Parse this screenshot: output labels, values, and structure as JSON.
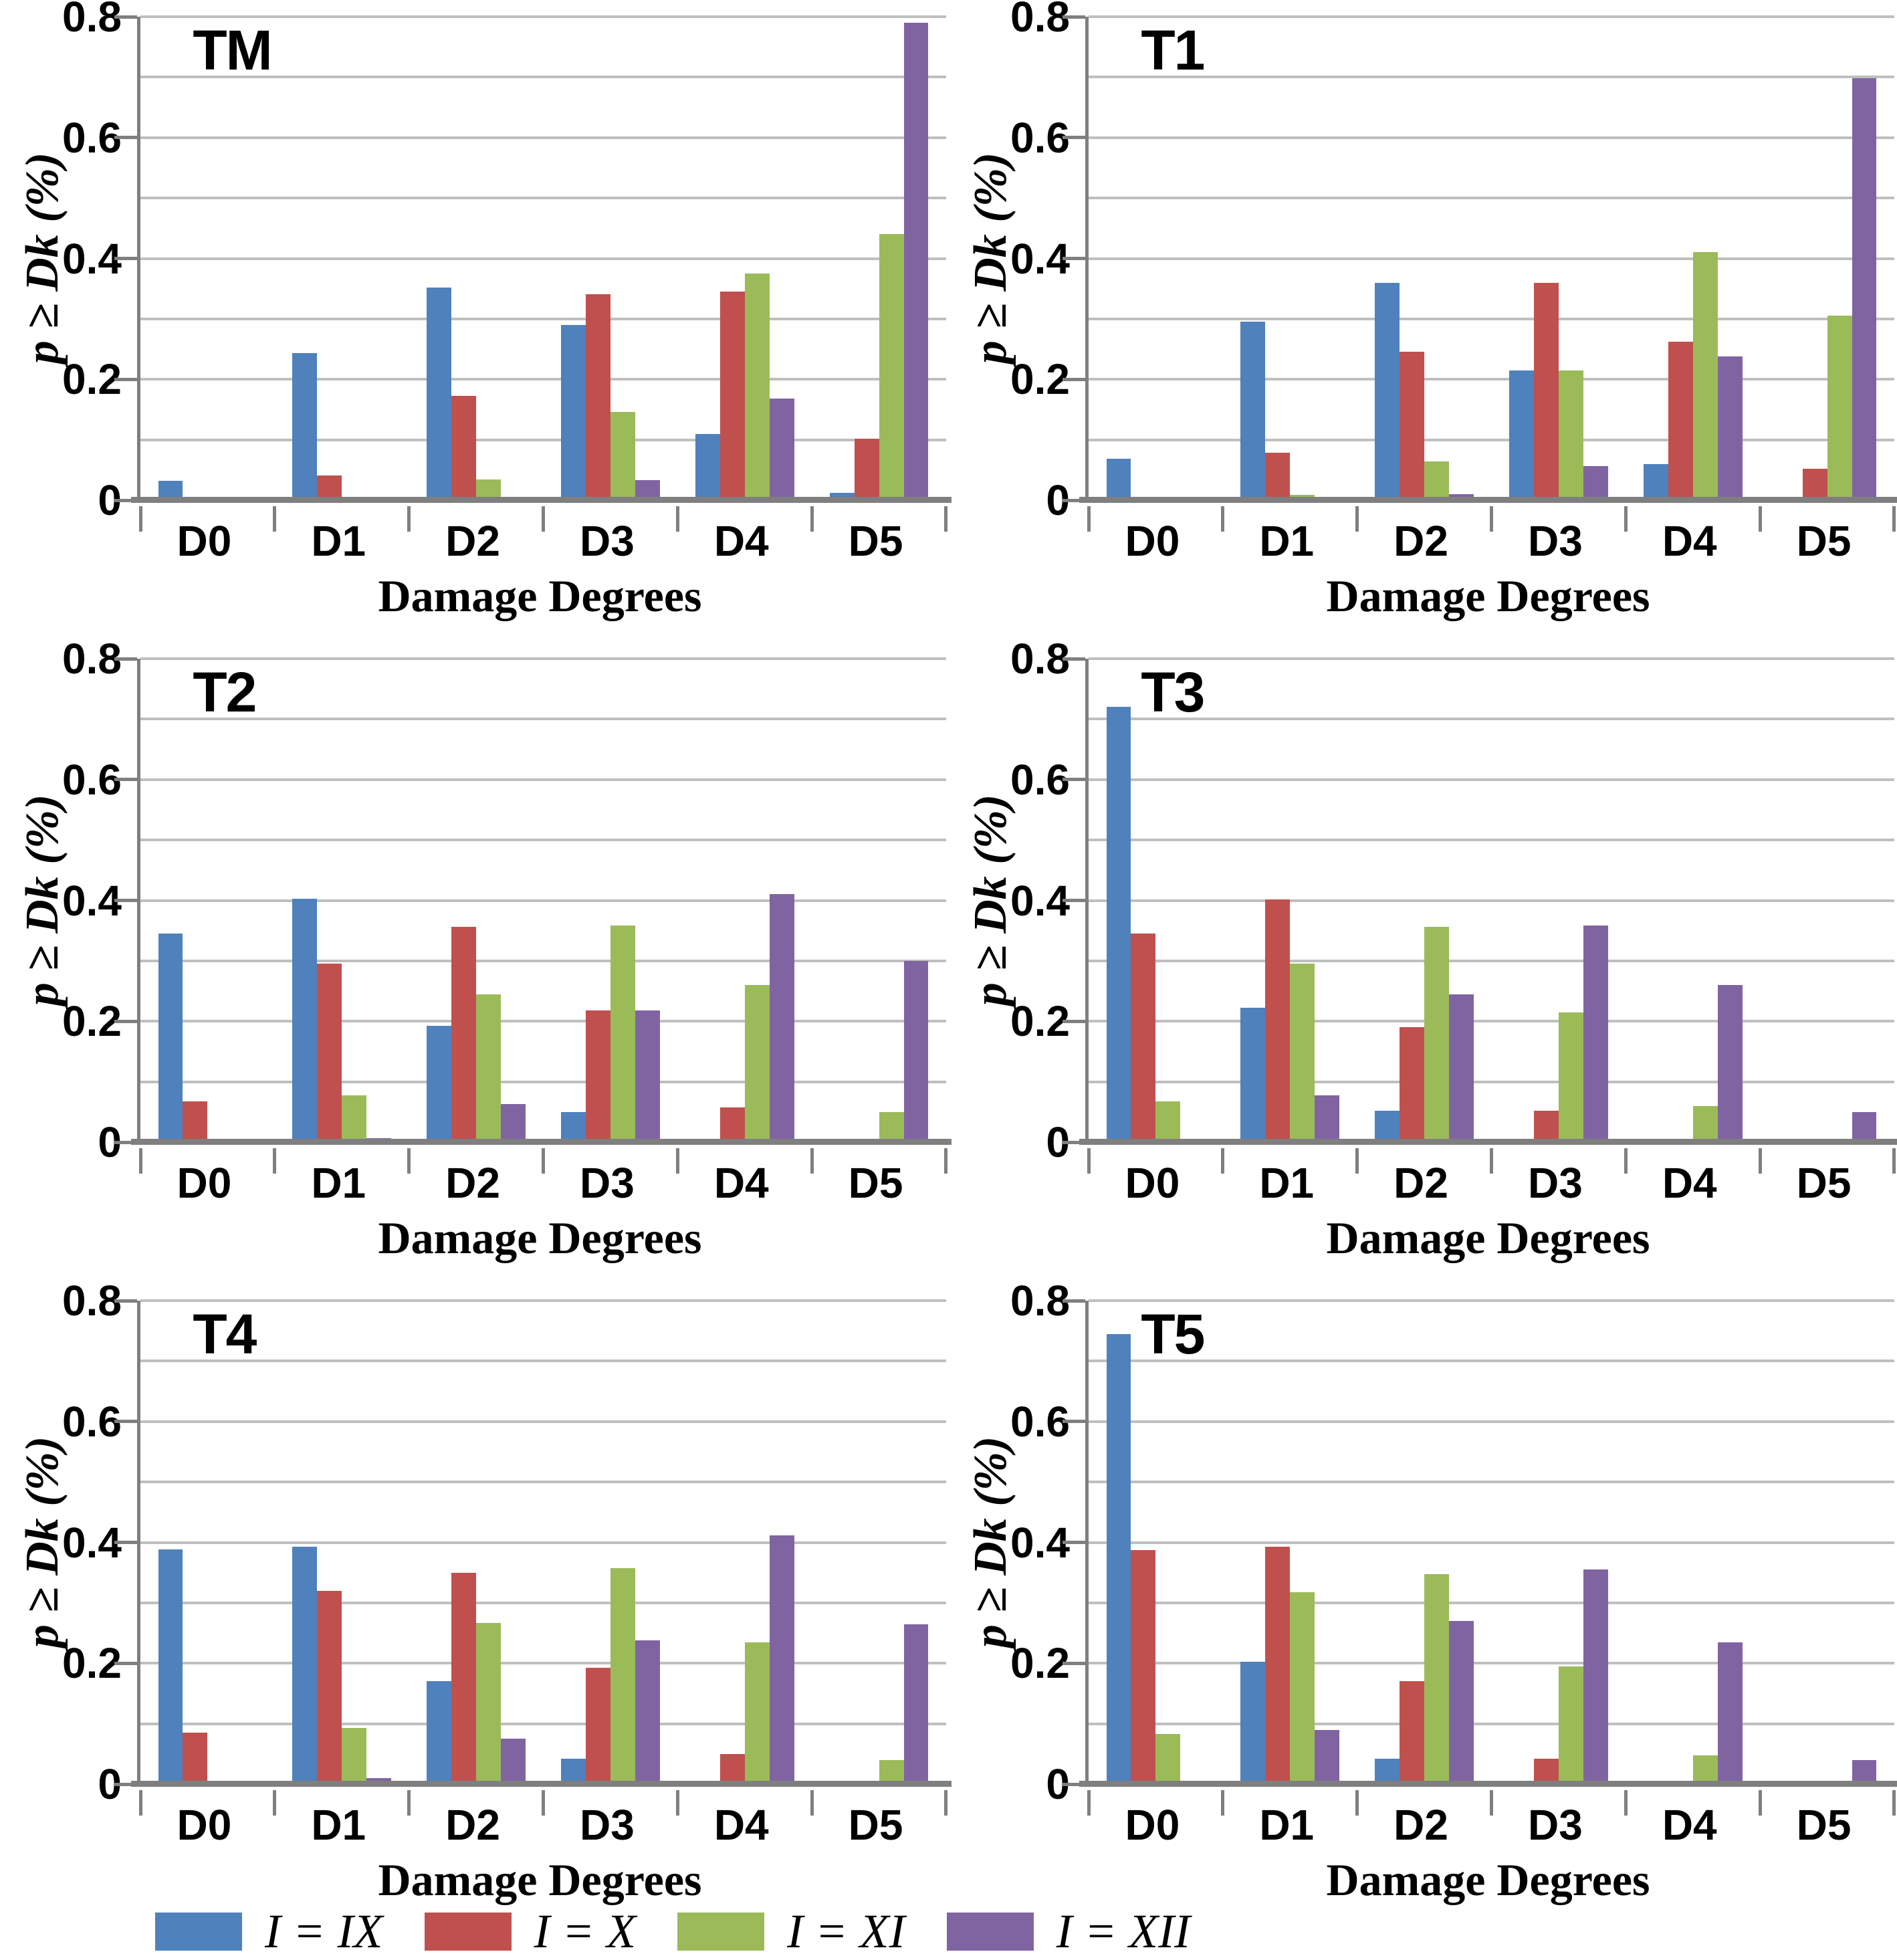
{
  "chart_data": {
    "type": "bar",
    "categories": [
      "D0",
      "D1",
      "D2",
      "D3",
      "D4",
      "D5"
    ],
    "xlabel": "Damage Degrees",
    "ylabel": "p ≥ Dk (%)",
    "ylim": [
      0,
      0.8
    ],
    "yticks": [
      0,
      0.2,
      0.4,
      0.6,
      0.8
    ],
    "ytick_labels": [
      "0",
      "0.2",
      "0.4",
      "0.6",
      "0.8"
    ],
    "gridline_step": 0.1,
    "grid": true,
    "legend_position": "bottom",
    "charts": [
      {
        "title": "TM",
        "series": [
          {
            "name": "I = IX",
            "values": [
              0.032,
              0.243,
              0.352,
              0.29,
              0.11,
              0.012
            ]
          },
          {
            "name": "I = X",
            "values": [
              0.002,
              0.041,
              0.173,
              0.341,
              0.345,
              0.102
            ]
          },
          {
            "name": "I = XI",
            "values": [
              0.001,
              0.005,
              0.034,
              0.146,
              0.375,
              0.44
            ]
          },
          {
            "name": "I = XII",
            "values": [
              0.0,
              0.001,
              0.004,
              0.033,
              0.168,
              0.79
            ]
          }
        ]
      },
      {
        "title": "T1",
        "series": [
          {
            "name": "I = IX",
            "values": [
              0.069,
              0.295,
              0.36,
              0.215,
              0.06,
              0.003
            ]
          },
          {
            "name": "I = X",
            "values": [
              0.006,
              0.079,
              0.246,
              0.36,
              0.262,
              0.052
            ]
          },
          {
            "name": "I = XI",
            "values": [
              0.001,
              0.009,
              0.064,
              0.215,
              0.41,
              0.305
            ]
          },
          {
            "name": "I = XII",
            "values": [
              0.0,
              0.001,
              0.01,
              0.057,
              0.238,
              0.698
            ]
          }
        ]
      },
      {
        "title": "T2",
        "series": [
          {
            "name": "I = IX",
            "values": [
              0.345,
              0.403,
              0.192,
              0.05,
              0.005,
              0.001
            ]
          },
          {
            "name": "I = X",
            "values": [
              0.068,
              0.295,
              0.356,
              0.218,
              0.058,
              0.001
            ]
          },
          {
            "name": "I = XI",
            "values": [
              0.004,
              0.078,
              0.245,
              0.358,
              0.26,
              0.05
            ]
          },
          {
            "name": "I = XII",
            "values": [
              0.0,
              0.007,
              0.063,
              0.218,
              0.41,
              0.3
            ]
          }
        ]
      },
      {
        "title": "T3",
        "series": [
          {
            "name": "I = IX",
            "values": [
              0.72,
              0.222,
              0.052,
              0.006,
              0.001,
              0.0
            ]
          },
          {
            "name": "I = X",
            "values": [
              0.345,
              0.402,
              0.19,
              0.052,
              0.006,
              0.001
            ]
          },
          {
            "name": "I = XI",
            "values": [
              0.068,
              0.295,
              0.356,
              0.215,
              0.06,
              0.002
            ]
          },
          {
            "name": "I = XII",
            "values": [
              0.004,
              0.078,
              0.245,
              0.358,
              0.26,
              0.05
            ]
          }
        ]
      },
      {
        "title": "T4",
        "series": [
          {
            "name": "I = IX",
            "values": [
              0.388,
              0.393,
              0.17,
              0.042,
              0.004,
              0.0
            ]
          },
          {
            "name": "I = X",
            "values": [
              0.085,
              0.32,
              0.35,
              0.193,
              0.05,
              0.001
            ]
          },
          {
            "name": "I = XI",
            "values": [
              0.006,
              0.093,
              0.267,
              0.357,
              0.235,
              0.04
            ]
          },
          {
            "name": "I = XII",
            "values": [
              0.0,
              0.01,
              0.075,
              0.238,
              0.412,
              0.265
            ]
          }
        ]
      },
      {
        "title": "T5",
        "series": [
          {
            "name": "I = IX",
            "values": [
              0.745,
              0.203,
              0.042,
              0.005,
              0.001,
              0.0
            ]
          },
          {
            "name": "I = X",
            "values": [
              0.387,
              0.393,
              0.17,
              0.042,
              0.004,
              0.0
            ]
          },
          {
            "name": "I = XI",
            "values": [
              0.083,
              0.318,
              0.348,
              0.195,
              0.048,
              0.002
            ]
          },
          {
            "name": "I = XII",
            "values": [
              0.005,
              0.09,
              0.27,
              0.355,
              0.235,
              0.04
            ]
          }
        ]
      }
    ]
  },
  "legend": {
    "items": [
      {
        "label": "I = IX",
        "color": "#4F81BD"
      },
      {
        "label": "I = X",
        "color": "#C0504D"
      },
      {
        "label": "I = XI",
        "color": "#9BBB59"
      },
      {
        "label": "I = XII",
        "color": "#8064A2"
      }
    ]
  },
  "colors": {
    "background": "#FFFFFF",
    "gridline": "#BFBFBF",
    "axis": "#7F7F7F",
    "text": "#000000"
  }
}
